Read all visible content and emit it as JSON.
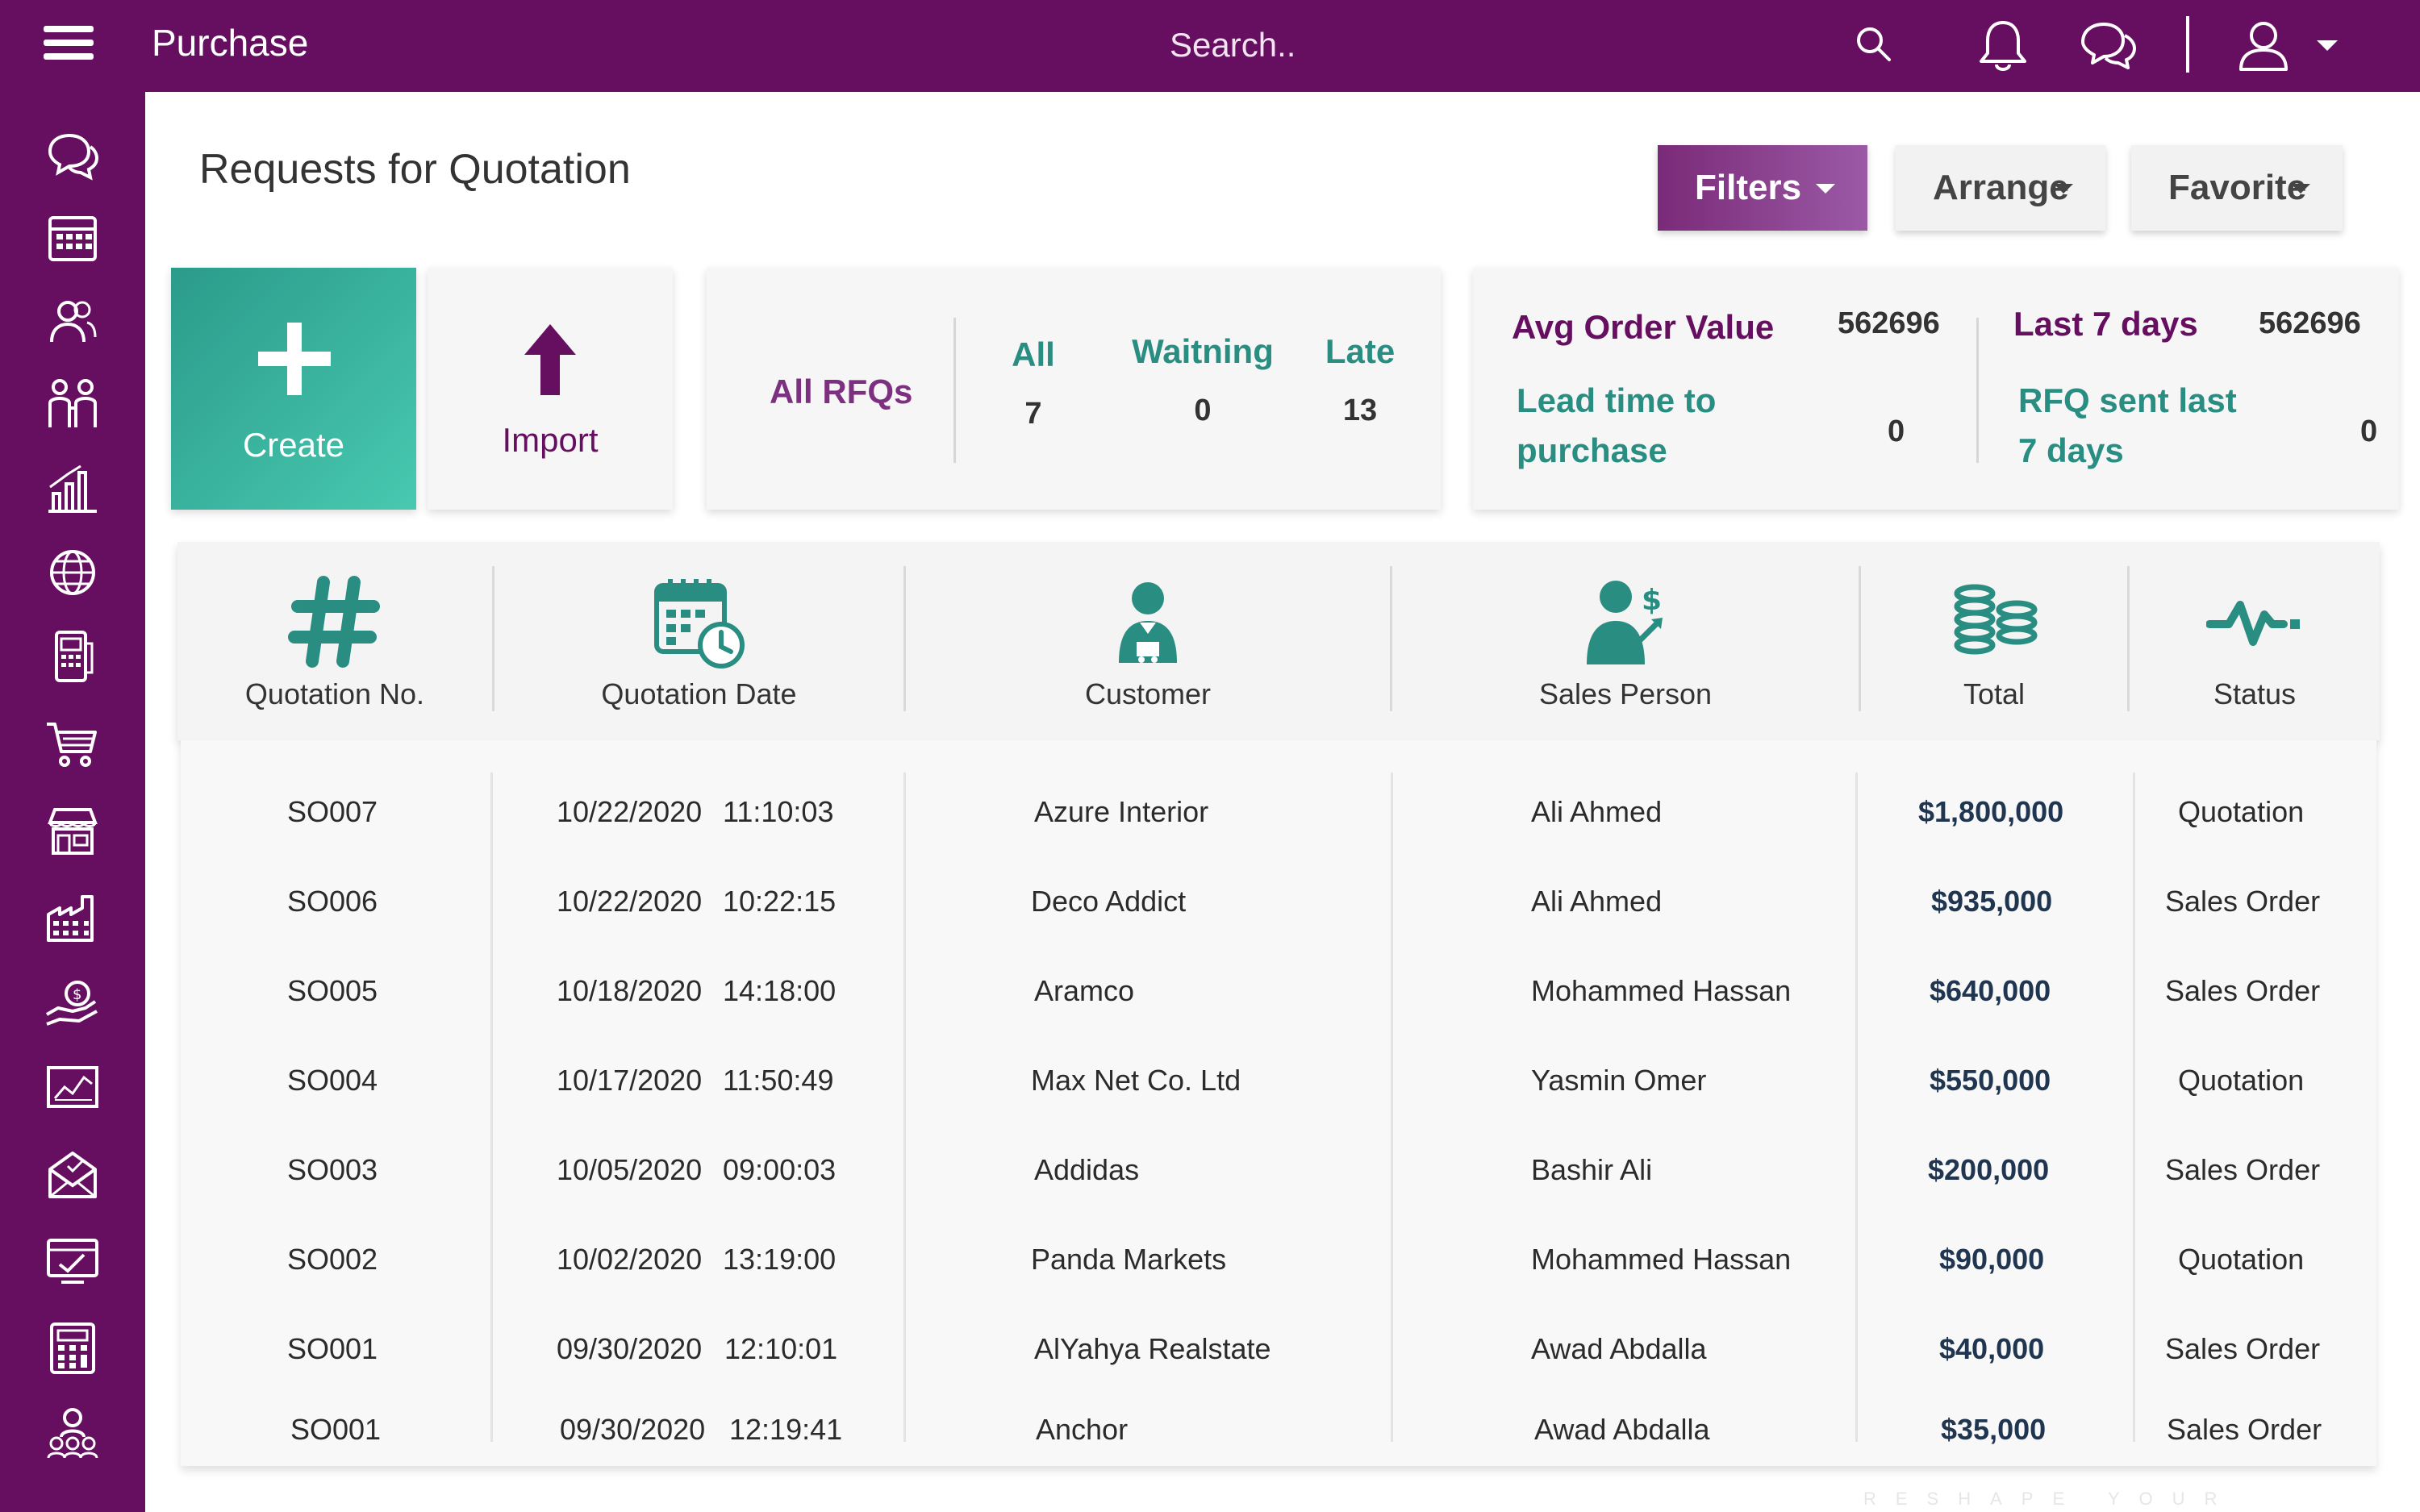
{
  "app": {
    "title": "Purchase"
  },
  "search": {
    "placeholder": "Search.."
  },
  "page": {
    "title": "Requests for Quotation"
  },
  "toolbar": {
    "filters": "Filters",
    "arrange": "Arrange",
    "favorite": "Favorite"
  },
  "actions": {
    "create": "Create",
    "import": "Import"
  },
  "rfq": {
    "title": "All RFQs",
    "all_label": "All",
    "all_value": "7",
    "waiting_label": "Waitning",
    "waiting_value": "0",
    "late_label": "Late",
    "late_value": "13"
  },
  "kpi": {
    "avg_order_label": "Avg Order Value",
    "avg_order_value": "562696",
    "last7_label": "Last 7 days",
    "last7_value": "562696",
    "lead_time_line1": "Lead time to",
    "lead_time_line2": "purchase",
    "lead_time_value": "0",
    "rfq_sent_line1": "RFQ sent last",
    "rfq_sent_line2": "7 days",
    "rfq_sent_value": "0"
  },
  "table": {
    "columns": [
      "Quotation No.",
      "Quotation Date",
      "Customer",
      "Sales Person",
      "Total",
      "Status"
    ],
    "rows": [
      {
        "no": "SO007",
        "date": "10/22/2020",
        "time": "11:10:03",
        "customer": "Azure Interior",
        "sales": "Ali Ahmed",
        "total": "$1,800,000",
        "status": "Quotation"
      },
      {
        "no": "SO006",
        "date": "10/22/2020",
        "time": "10:22:15",
        "customer": "Deco Addict",
        "sales": "Ali Ahmed",
        "total": "$935,000",
        "status": "Sales Order"
      },
      {
        "no": "SO005",
        "date": "10/18/2020",
        "time": "14:18:00",
        "customer": "Aramco",
        "sales": "Mohammed Hassan",
        "total": "$640,000",
        "status": "Sales Order"
      },
      {
        "no": "SO004",
        "date": "10/17/2020",
        "time": "11:50:49",
        "customer": "Max Net Co. Ltd",
        "sales": "Yasmin Omer",
        "total": "$550,000",
        "status": "Quotation"
      },
      {
        "no": "SO003",
        "date": "10/05/2020",
        "time": "09:00:03",
        "customer": "Addidas",
        "sales": "Bashir Ali",
        "total": "$200,000",
        "status": "Sales Order"
      },
      {
        "no": "SO002",
        "date": "10/02/2020",
        "time": "13:19:00",
        "customer": "Panda Markets",
        "sales": "Mohammed Hassan",
        "total": "$90,000",
        "status": "Quotation"
      },
      {
        "no": "SO001",
        "date": "09/30/2020",
        "time": "12:10:01",
        "customer": "AlYahya Realstate",
        "sales": "Awad Abdalla",
        "total": "$40,000",
        "status": "Sales Order"
      },
      {
        "no": "SO001",
        "date": "09/30/2020",
        "time": "12:19:41",
        "customer": "Anchor",
        "sales": "Awad Abdalla",
        "total": "$35,000",
        "status": "Sales Order"
      }
    ]
  },
  "watermark": "RESHAPE YOUR BUSINESS",
  "colors": {
    "brand": "#660f61",
    "accent_teal": "#2a8d82",
    "create_gradient_start": "#2b9b8a",
    "create_gradient_end": "#48c9b0"
  },
  "icons": {
    "sidebar": [
      "chat-icon",
      "calendar-icon",
      "contacts-icon",
      "team-icon",
      "bar-chart-icon",
      "globe-icon",
      "pos-terminal-icon",
      "cart-icon",
      "store-icon",
      "factory-icon",
      "hand-money-icon",
      "report-chart-icon",
      "mail-icon",
      "dashboard-icon",
      "calculator-icon",
      "employees-icon"
    ]
  }
}
